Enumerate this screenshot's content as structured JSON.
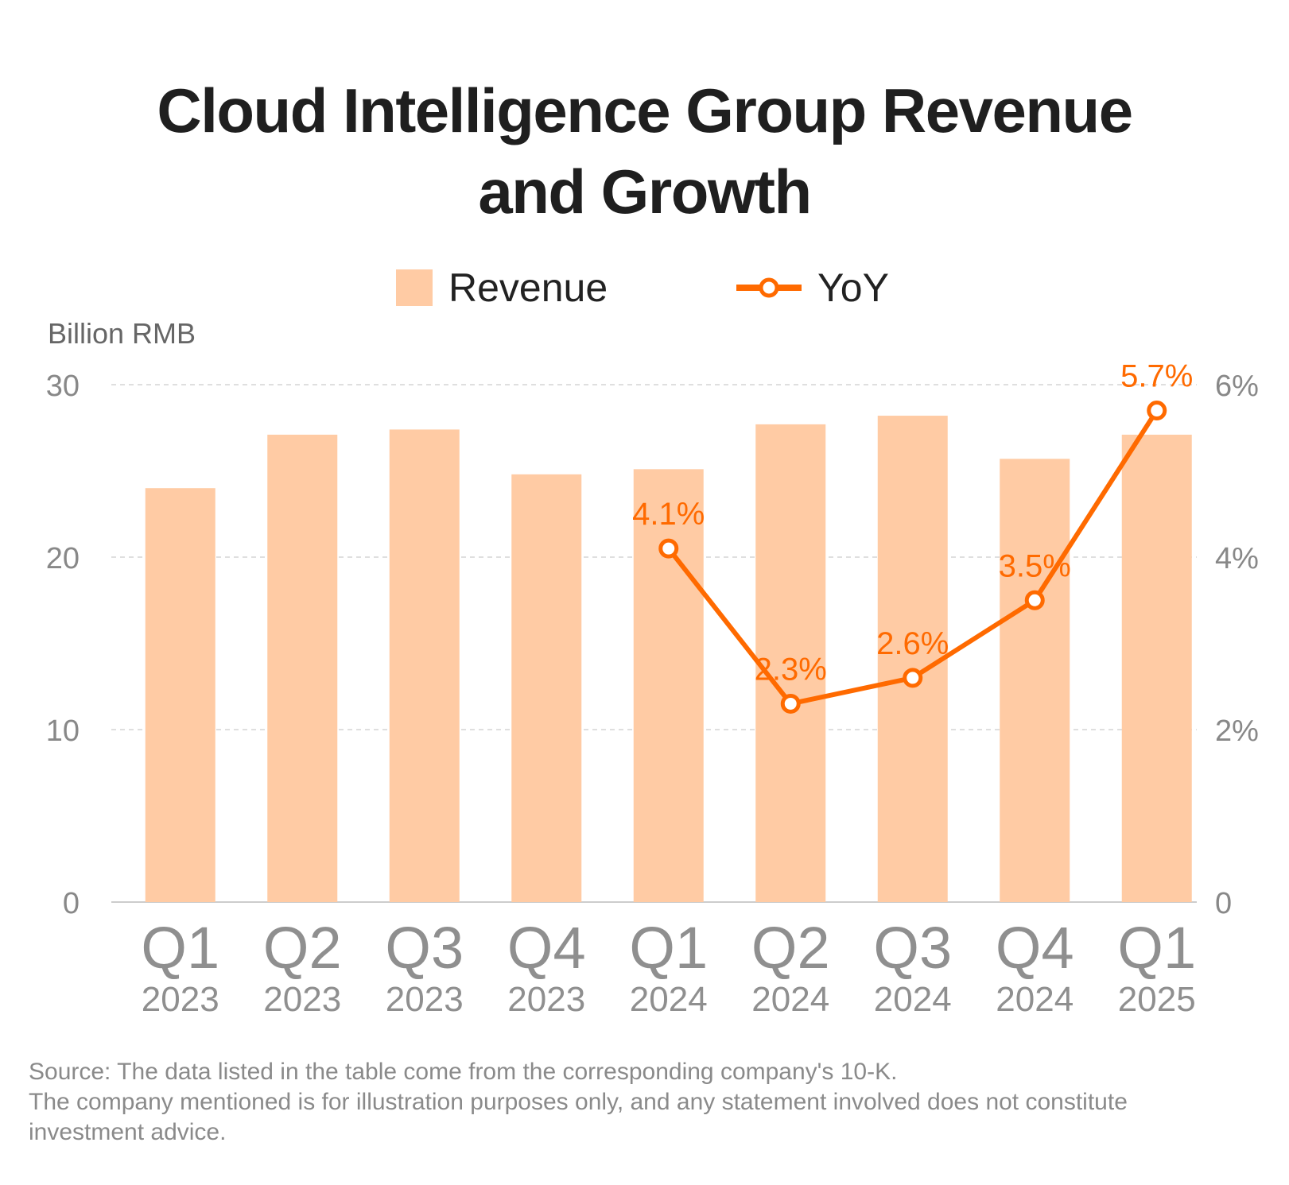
{
  "title_lines": [
    "Cloud Intelligence Group Revenue",
    "and Growth"
  ],
  "legend": {
    "revenue": "Revenue",
    "yoy": "YoY"
  },
  "colors": {
    "bar": "#FFCBA4",
    "line": "#FF6A00",
    "grid": "#cccccc",
    "axis_text": "#888888",
    "title": "#1f1f1f",
    "note": "#8a8a8a"
  },
  "chart_data": {
    "type": "bar",
    "ylabel": "Billion RMB",
    "ylim": [
      0,
      30
    ],
    "y_ticks": [
      "0",
      "10",
      "20",
      "30"
    ],
    "y2lim": [
      0,
      6
    ],
    "y2_ticks": [
      "0",
      "2%",
      "4%",
      "6%"
    ],
    "grid": true,
    "legend_position": "top-center",
    "categories": [
      {
        "quarter": "Q1",
        "year": "2023"
      },
      {
        "quarter": "Q2",
        "year": "2023"
      },
      {
        "quarter": "Q3",
        "year": "2023"
      },
      {
        "quarter": "Q4",
        "year": "2023"
      },
      {
        "quarter": "Q1",
        "year": "2024"
      },
      {
        "quarter": "Q2",
        "year": "2024"
      },
      {
        "quarter": "Q3",
        "year": "2024"
      },
      {
        "quarter": "Q4",
        "year": "2024"
      },
      {
        "quarter": "Q1",
        "year": "2025"
      }
    ],
    "series": [
      {
        "name": "Revenue",
        "type": "bar",
        "axis": "left",
        "values": [
          24.0,
          27.1,
          27.4,
          24.8,
          25.1,
          27.7,
          28.2,
          25.7,
          27.1
        ]
      },
      {
        "name": "YoY",
        "type": "line",
        "axis": "right",
        "values": [
          null,
          null,
          null,
          null,
          4.1,
          2.3,
          2.6,
          3.5,
          5.7
        ],
        "labels": [
          null,
          null,
          null,
          null,
          "4.1%",
          "2.3%",
          "2.6%",
          "3.5%",
          "5.7%"
        ]
      }
    ]
  },
  "note_lines": [
    "Source: The data listed in the table come from the corresponding company's 10-K.",
    "The company mentioned is for illustration purposes only, and any statement involved does not constitute",
    "investment advice."
  ]
}
